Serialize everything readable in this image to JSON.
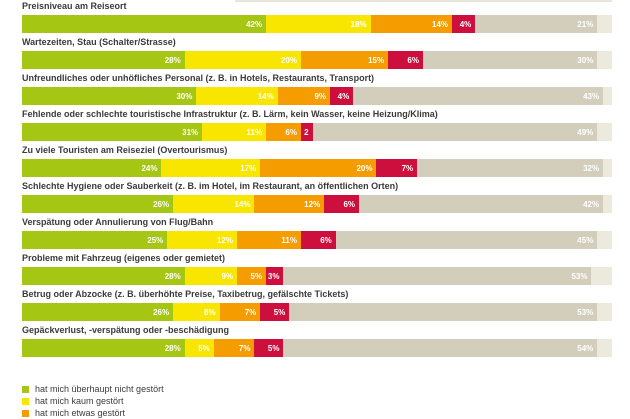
{
  "page": {
    "background": "#ffffff",
    "note_cropped_bar_top": "bottom sliver of a bar cut off at top edge",
    "note_cropped_legend_bottom": "third legend line cut off at bottom edge"
  },
  "chart_data": {
    "type": "bar",
    "orientation": "horizontal_stacked",
    "unit": "%",
    "xlim": [
      0,
      100
    ],
    "grid": false,
    "legend_position": "bottom-left",
    "categories": [
      "Preisniveau am Reiseort",
      "Wartezeiten, Stau (Schalter/Strasse)",
      "Unfreundliches oder unhöfliches Personal (z. B. in Hotels, Restaurants, Transport)",
      "Fehlende oder schlechte touristische Infrastruktur (z. B. Lärm, kein Wasser, keine Heizung/Klima)",
      "Zu viele Touristen am Reiseziel (Overtourismus)",
      "Schlechte Hygiene oder Sauberkeit (z. B. im Hotel, im Restaurant, an öffentlichen Orten)",
      "Verspätung oder Annulierung von Flug/Bahn",
      "Probleme mit Fahrzeug (eigenes oder gemietet)",
      "Betrug oder Abzocke (z. B. überhöhte Preise, Taxibetrug, gefälschte Tickets)",
      "Gepäckverlust, -verspätung oder -beschädigung"
    ],
    "series": [
      {
        "name": "hat mich überhaupt nicht gestört",
        "color": "#a5c613",
        "values": [
          42,
          28,
          30,
          31,
          24,
          26,
          25,
          28,
          26,
          28
        ]
      },
      {
        "name": "hat mich kaum gestört",
        "color": "#f8e600",
        "values": [
          18,
          20,
          14,
          11,
          17,
          14,
          12,
          9,
          8,
          5
        ]
      },
      {
        "name": "hat mich etwas gestört",
        "color": "#f49c00",
        "values": [
          14,
          15,
          9,
          6,
          20,
          12,
          11,
          5,
          7,
          7
        ]
      },
      {
        "name": "red",
        "color": "#cc0f3d",
        "values": [
          4,
          6,
          4,
          2,
          7,
          6,
          6,
          3,
          5,
          5
        ]
      },
      {
        "name": "beige",
        "color": "#d3cdbc",
        "values": [
          21,
          30,
          43,
          49,
          32,
          42,
          45,
          53,
          53,
          54
        ]
      }
    ],
    "display_labels": [
      [
        "42%",
        "18%",
        "14%",
        "4%",
        "21%"
      ],
      [
        "28%",
        "20%",
        "15%",
        "6%",
        "30%"
      ],
      [
        "30%",
        "14%",
        "9%",
        "4%",
        "43%"
      ],
      [
        "31%",
        "11%",
        "6%",
        "2",
        "49%"
      ],
      [
        "24%",
        "17%",
        "20%",
        "7%",
        "32%"
      ],
      [
        "26%",
        "14%",
        "12%",
        "6%",
        "42%"
      ],
      [
        "25%",
        "12%",
        "11%",
        "6%",
        "45%"
      ],
      [
        "28%",
        "9%",
        "5%",
        "3%",
        "53%"
      ],
      [
        "26%",
        "8%",
        "7%",
        "5%",
        "53%"
      ],
      [
        "28%",
        "5%",
        "7%",
        "5%",
        "54%"
      ]
    ],
    "rest_segment": {
      "color": "#ece9dd",
      "label": ""
    }
  },
  "legend": {
    "items": [
      {
        "label": "hat mich überhaupt nicht gestört",
        "color": "#a5c613",
        "clipped": false
      },
      {
        "label": "hat mich kaum gestört",
        "color": "#f8e600",
        "clipped": false
      },
      {
        "label": "hat mich etwas gestört",
        "color": "#f49c00",
        "clipped": true
      }
    ]
  }
}
